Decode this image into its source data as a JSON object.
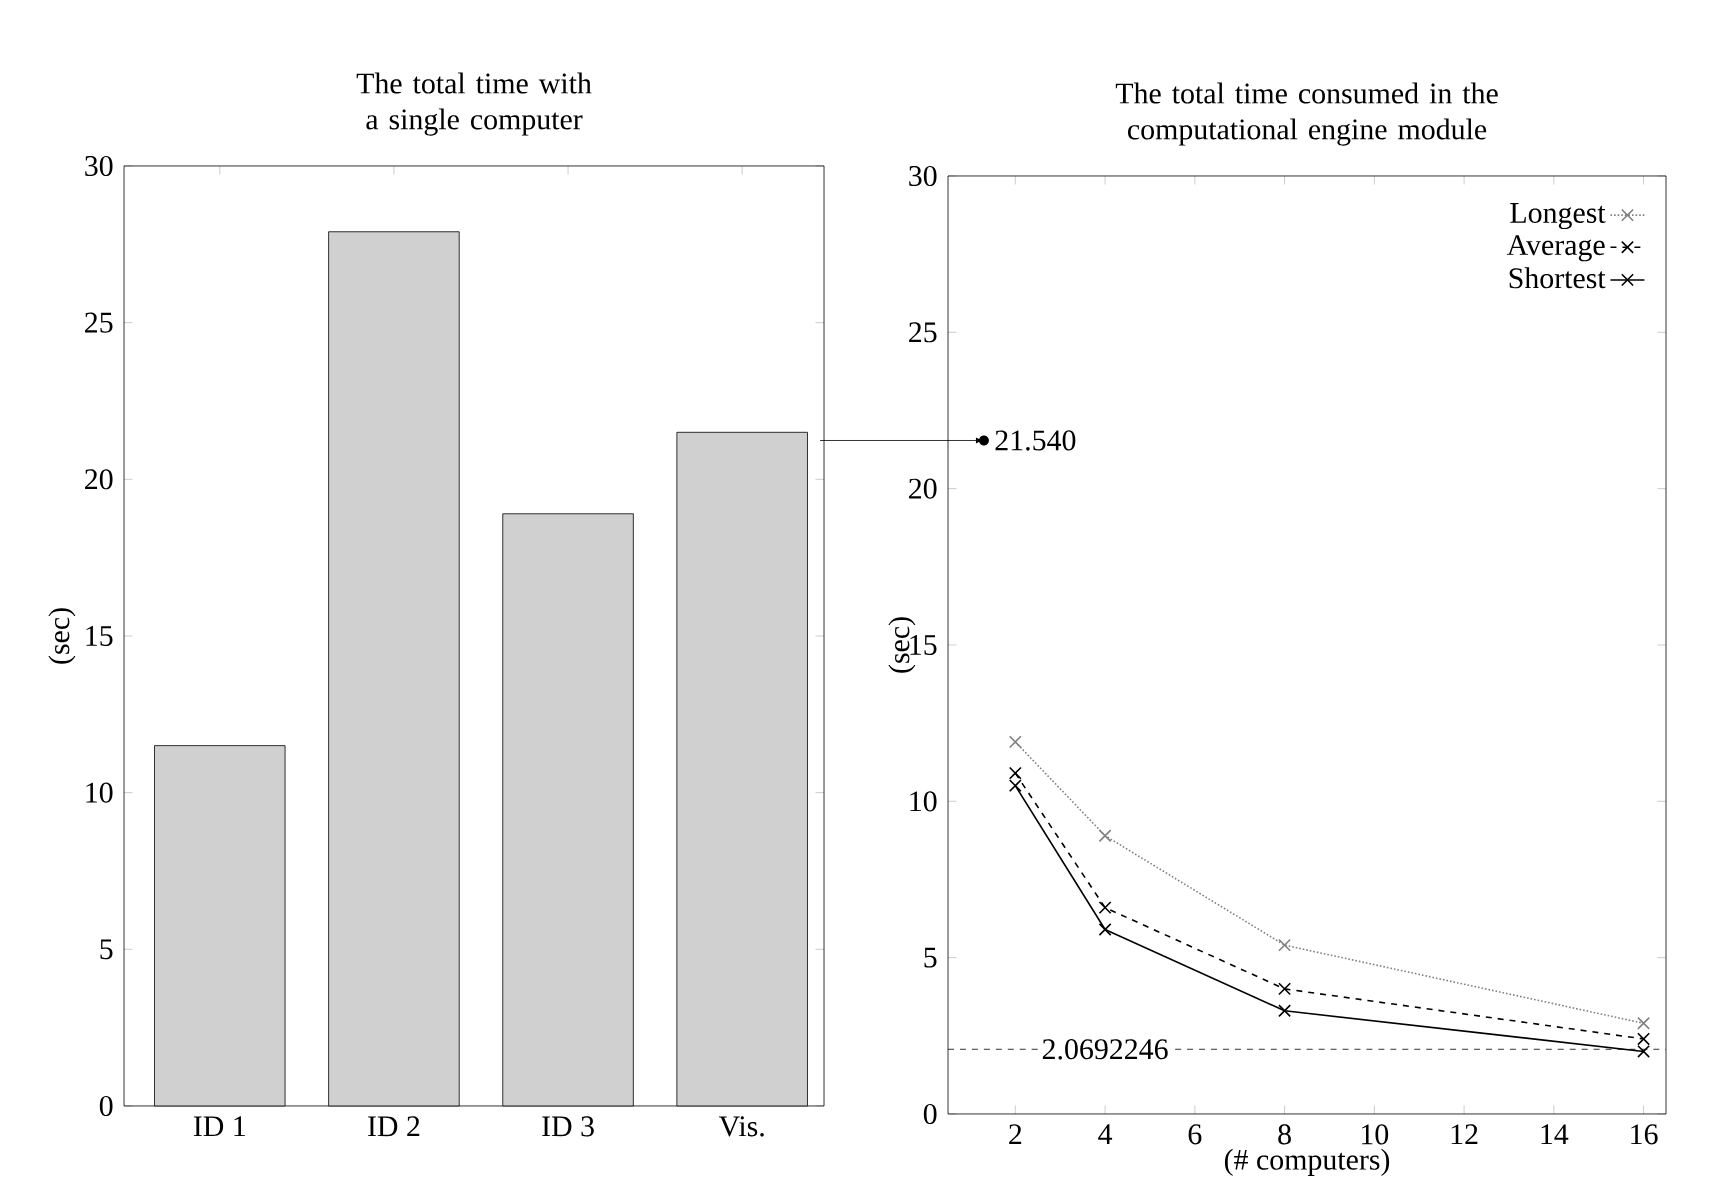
{
  "chart_data": [
    {
      "type": "bar",
      "title": "The total time with a single computer",
      "ylabel": "(sec)",
      "categories": [
        "ID 1",
        "ID 2",
        "ID 3",
        "Vis."
      ],
      "values": [
        11.5,
        27.9,
        18.9,
        21.5
      ],
      "color": "#d0d0d0",
      "ylim": [
        0,
        30
      ],
      "yticks": [
        0,
        5,
        10,
        15,
        20,
        25,
        30
      ],
      "grid": false
    },
    {
      "type": "line",
      "title": "The total time consumed in the computational engine module",
      "xlabel": "(# computers)",
      "ylabel": "(sec)",
      "x": [
        2,
        4,
        8,
        16
      ],
      "series": [
        {
          "name": "Longest",
          "color": "#808080",
          "line_style": "dotted",
          "values": [
            11.9,
            8.9,
            5.4,
            2.9
          ]
        },
        {
          "name": "Average",
          "color": "#000000",
          "line_style": "dashed",
          "values": [
            10.9,
            6.6,
            4.0,
            2.4
          ]
        },
        {
          "name": "Shortest",
          "color": "#000000",
          "line_style": "solid",
          "values": [
            10.5,
            5.9,
            3.3,
            2.0
          ]
        }
      ],
      "marker": "cross",
      "xlim": [
        0.5,
        16.5
      ],
      "xticks": [
        2,
        4,
        6,
        8,
        10,
        12,
        14,
        16
      ],
      "ylim": [
        0,
        30
      ],
      "yticks": [
        0,
        5,
        10,
        15,
        20,
        25,
        30
      ],
      "grid": false,
      "legend": "top right",
      "ref_lines": [
        {
          "axis": "y",
          "value": 2.0692246,
          "label": "2.0692246",
          "line_style": "dashed"
        }
      ],
      "annotations": [
        {
          "text": "21.540",
          "x": 1.3,
          "y": 21.54
        }
      ]
    }
  ]
}
